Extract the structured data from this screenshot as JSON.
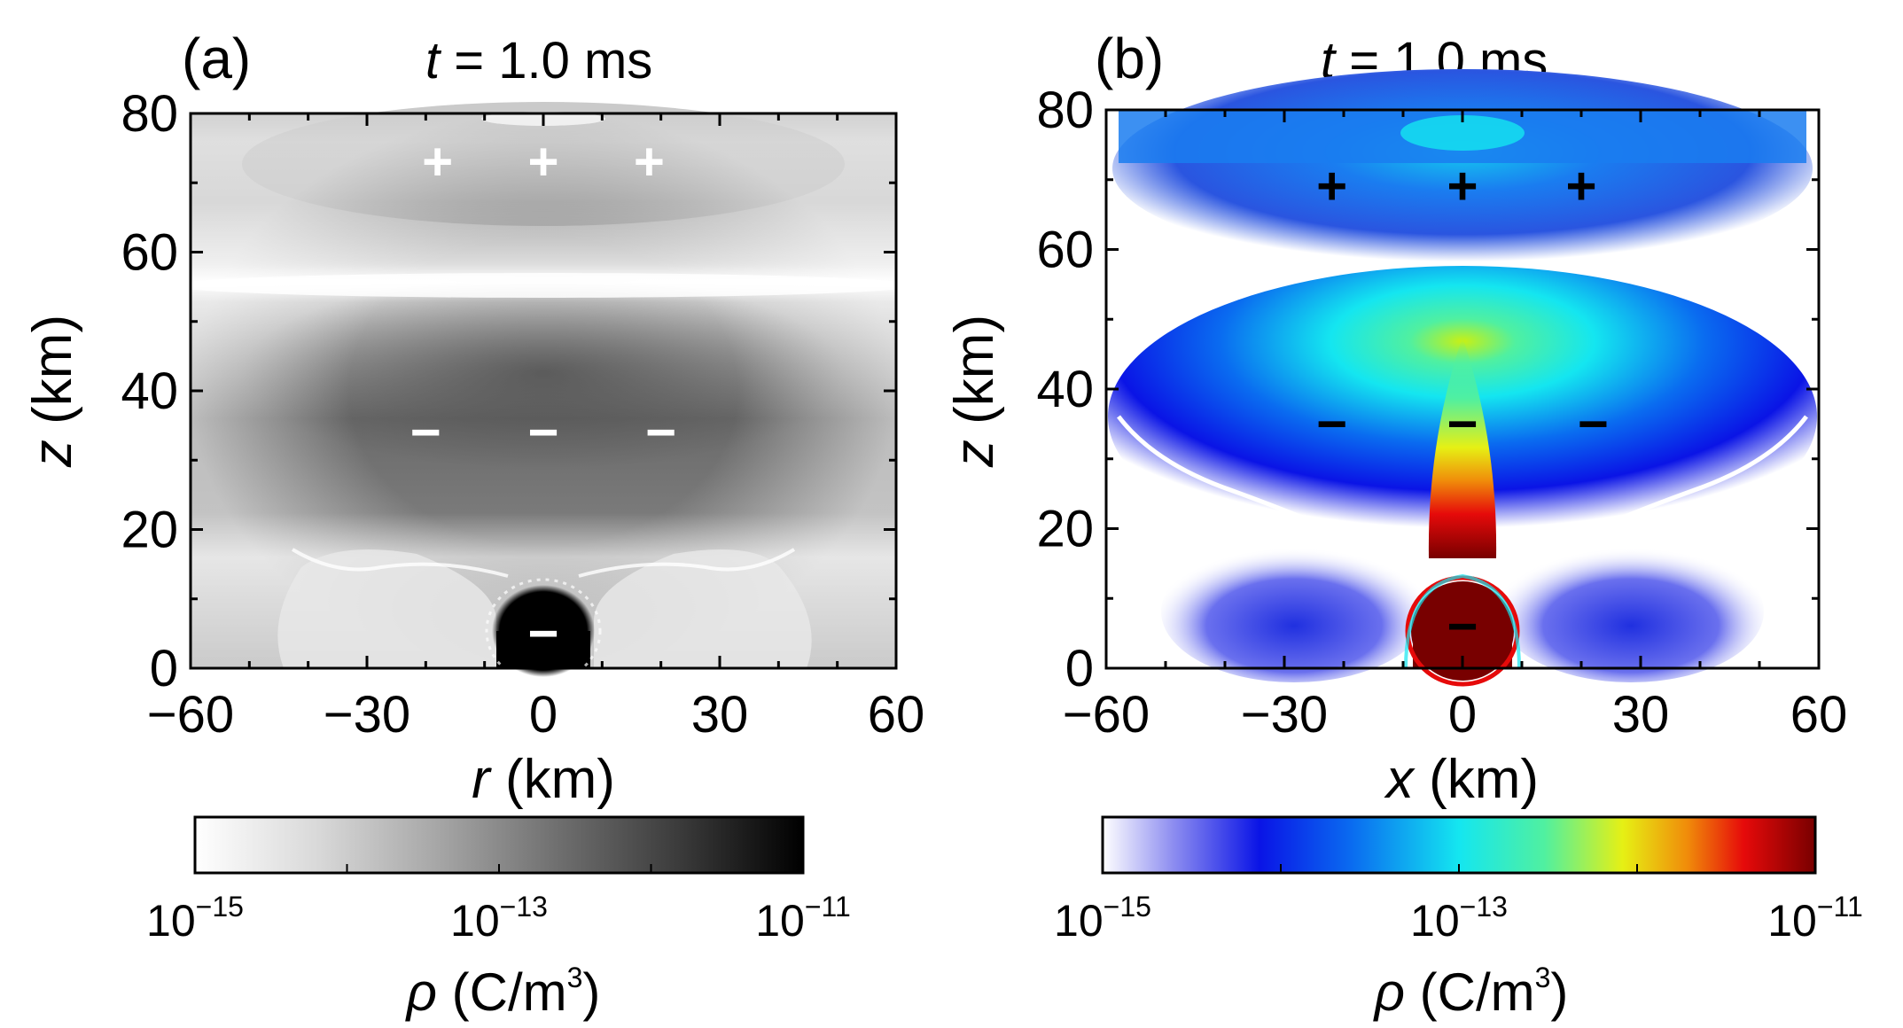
{
  "chart_data": [
    {
      "type": "heatmap",
      "panel_label": "(a)",
      "title": {
        "prefix": "t",
        "suffix": " = 1.0 ms"
      },
      "xlabel": {
        "var": "r",
        "unit": " (km)"
      },
      "ylabel": {
        "var": "z",
        "unit": " (km)"
      },
      "xlim": [
        -60,
        60
      ],
      "ylim": [
        0,
        80
      ],
      "xticks": [
        -60,
        -30,
        0,
        30,
        60
      ],
      "yticks": [
        0,
        20,
        40,
        60,
        80
      ],
      "xtick_labels": [
        "−60",
        "−30",
        "0",
        "30",
        "60"
      ],
      "ytick_labels": [
        "0",
        "20",
        "40",
        "60",
        "80"
      ],
      "colormap": "grayscale",
      "colormap_colors": [
        "#ffffff",
        "#d9d9d9",
        "#a6a6a6",
        "#6e6e6e",
        "#3a3a3a",
        "#000000"
      ],
      "charge_color": "#ffffff",
      "charges": [
        {
          "sign": "+",
          "x": -18,
          "z": 73
        },
        {
          "sign": "+",
          "x": 0,
          "z": 73
        },
        {
          "sign": "+",
          "x": 18,
          "z": 73
        },
        {
          "sign": "−",
          "x": -20,
          "z": 34
        },
        {
          "sign": "−",
          "x": 0,
          "z": 34
        },
        {
          "sign": "−",
          "x": 20,
          "z": 34
        },
        {
          "sign": "−",
          "x": 0,
          "z": 5
        }
      ],
      "colorbar": {
        "scale": "log",
        "min": 1e-15,
        "max": 1e-11,
        "tick_labels": [
          {
            "base": "10",
            "exp": "−15"
          },
          {
            "base": "10",
            "exp": "−13"
          },
          {
            "base": "10",
            "exp": "−11"
          }
        ],
        "label": {
          "var": "ρ",
          "unit": " (C/m",
          "exp": "3",
          "close": ")"
        }
      }
    },
    {
      "type": "heatmap",
      "panel_label": "(b)",
      "title": {
        "prefix": "t",
        "suffix": " = 1.0 ms"
      },
      "xlabel": {
        "var": "x",
        "unit": " (km)"
      },
      "ylabel": {
        "var": "z",
        "unit": " (km)"
      },
      "xlim": [
        -60,
        60
      ],
      "ylim": [
        0,
        80
      ],
      "xticks": [
        -60,
        -30,
        0,
        30,
        60
      ],
      "yticks": [
        0,
        20,
        40,
        60,
        80
      ],
      "xtick_labels": [
        "−60",
        "−30",
        "0",
        "30",
        "60"
      ],
      "ytick_labels": [
        "0",
        "20",
        "40",
        "60",
        "80"
      ],
      "colormap": "jet",
      "colormap_colors": [
        "#ffffff",
        "#8c8cf0",
        "#0a14e6",
        "#0a6cf0",
        "#14e6f0",
        "#50f0a0",
        "#e6f014",
        "#f08c0a",
        "#e60a0a",
        "#780000"
      ],
      "charge_color": "#000000",
      "charges": [
        {
          "sign": "+",
          "x": -22,
          "z": 69
        },
        {
          "sign": "+",
          "x": 0,
          "z": 69
        },
        {
          "sign": "+",
          "x": 20,
          "z": 69
        },
        {
          "sign": "−",
          "x": -22,
          "z": 35
        },
        {
          "sign": "−",
          "x": 0,
          "z": 35
        },
        {
          "sign": "−",
          "x": 22,
          "z": 35
        },
        {
          "sign": "−",
          "x": 0,
          "z": 6
        }
      ],
      "colorbar": {
        "scale": "log",
        "min": 1e-15,
        "max": 1e-11,
        "tick_labels": [
          {
            "base": "10",
            "exp": "−15"
          },
          {
            "base": "10",
            "exp": "−13"
          },
          {
            "base": "10",
            "exp": "−11"
          }
        ],
        "label": {
          "var": "ρ",
          "unit": " (C/m",
          "exp": "3",
          "close": ")"
        }
      }
    }
  ]
}
